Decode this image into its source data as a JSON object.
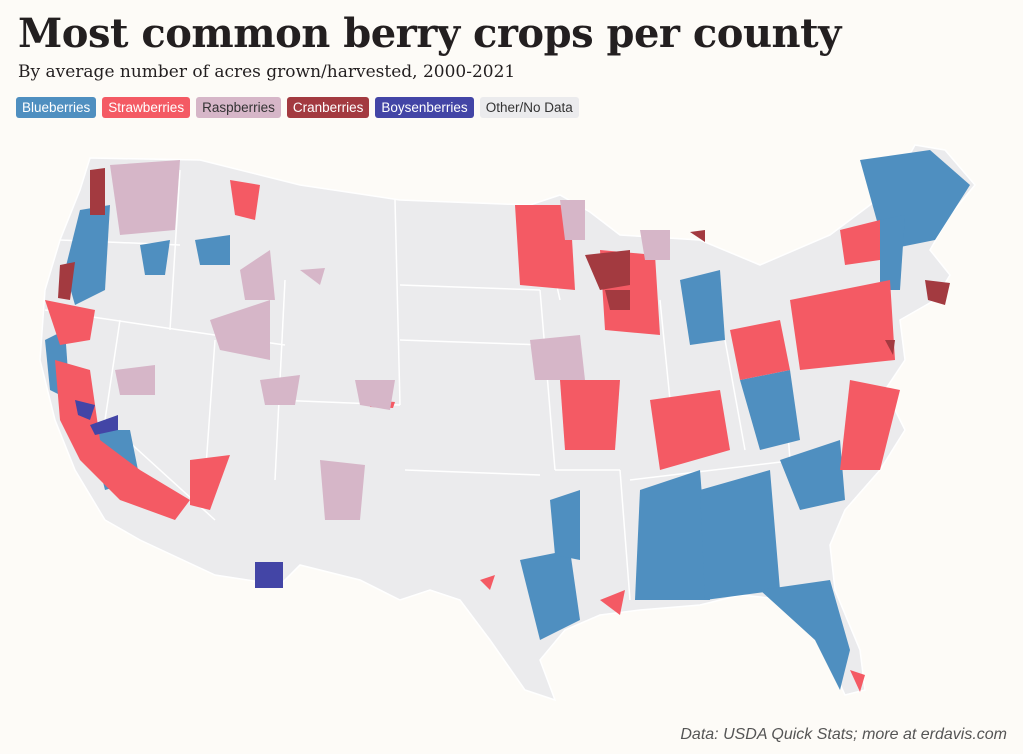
{
  "title": "Most common berry crops per county",
  "subtitle": "By average number of acres grown/harvested, 2000-2021",
  "legend": [
    {
      "label": "Blueberries",
      "color": "#4f8fc0",
      "text": "#ffffff"
    },
    {
      "label": "Strawberries",
      "color": "#f45a64",
      "text": "#ffffff"
    },
    {
      "label": "Raspberries",
      "color": "#d6b6c8",
      "text": "#333333"
    },
    {
      "label": "Cranberries",
      "color": "#a33a40",
      "text": "#ffffff"
    },
    {
      "label": "Boysenberries",
      "color": "#4345a6",
      "text": "#ffffff"
    },
    {
      "label": "Other/No Data",
      "color": "#ebebed",
      "text": "#333333"
    }
  ],
  "source": "Data: USDA Quick Stats; more at erdavis.com"
}
